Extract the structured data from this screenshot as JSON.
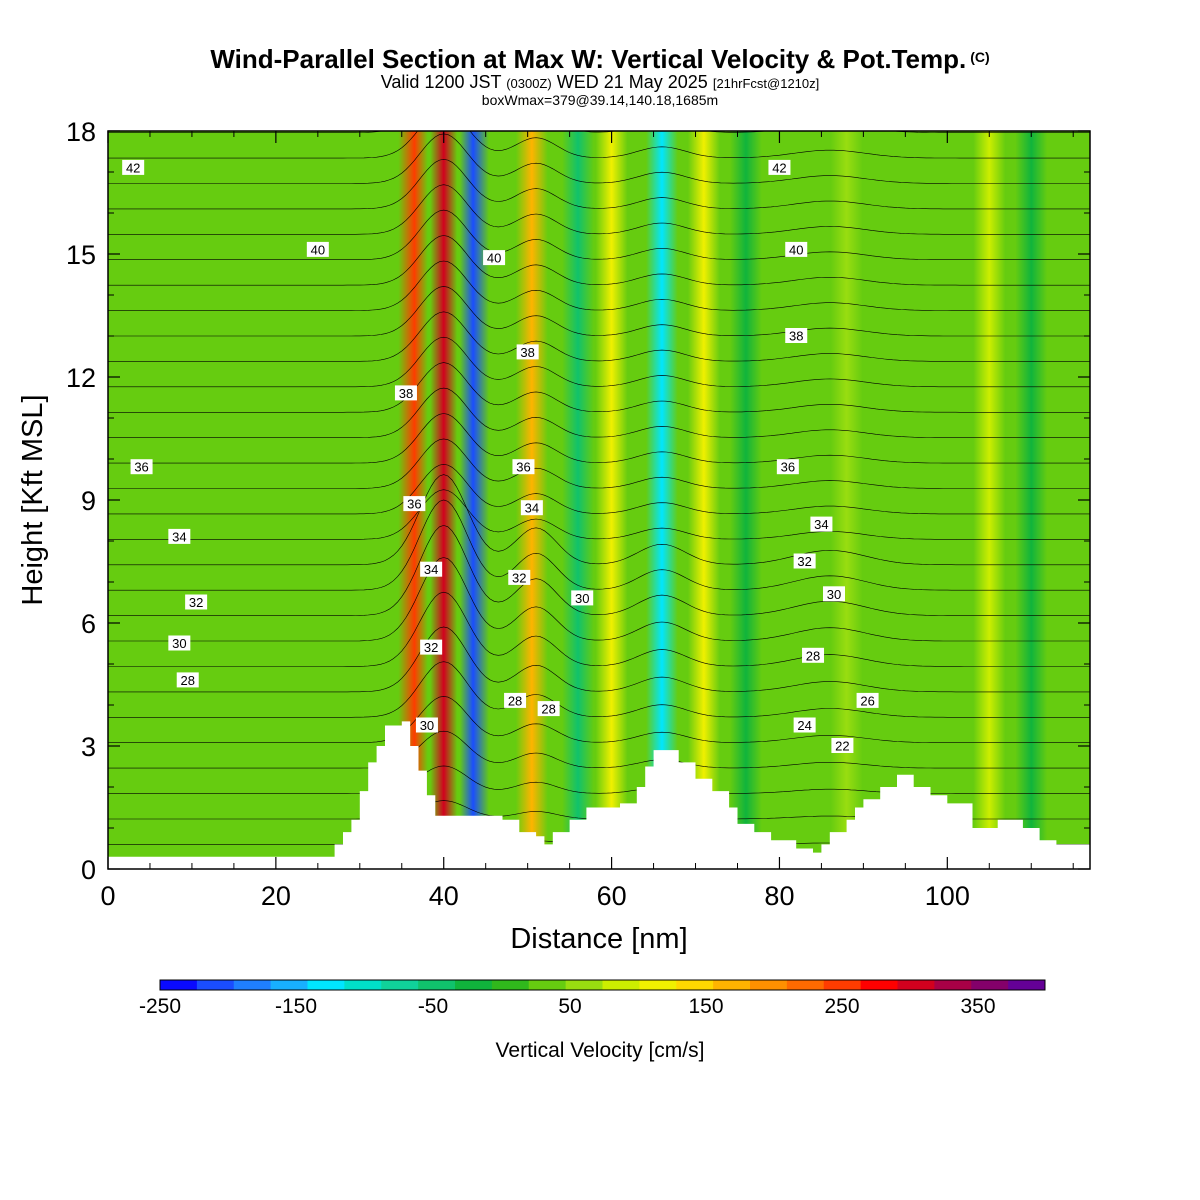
{
  "header": {
    "title": "Wind-Parallel Section at Max W: Vertical Velocity & Pot.Temp.",
    "copyright": "(C)",
    "valid_prefix": "Valid 1200 JST",
    "valid_utc": "(0300Z)",
    "valid_date": "WED 21 May 2025",
    "forecast_info": "[21hrFcst@1210z]",
    "box_info": "boxWmax=379@39.14,140.18,1685m"
  },
  "colorbar": {
    "label": "Vertical Velocity [cm/s]",
    "ticks": [
      "-250",
      "-150",
      "-50",
      "50",
      "150",
      "250",
      "350"
    ],
    "colors": [
      "#0a0aff",
      "#1a4dff",
      "#1f7fff",
      "#18b0ff",
      "#00e6ff",
      "#00e0c8",
      "#10d29a",
      "#10c26c",
      "#10b43c",
      "#30b81c",
      "#66cc10",
      "#99dd10",
      "#ccee00",
      "#f0f000",
      "#ffd800",
      "#ffb400",
      "#ff9000",
      "#ff6a00",
      "#ff3c00",
      "#ff0000",
      "#d2001e",
      "#a80046",
      "#84006a",
      "#640096"
    ]
  },
  "chart_data": {
    "type": "heatmap",
    "title": "Wind-Parallel Section at Max W: Vertical Velocity & Pot.Temp.",
    "xlabel": "Distance [nm]",
    "ylabel": "Height [Kft MSL]",
    "xlim": [
      0,
      117
    ],
    "ylim": [
      0,
      18
    ],
    "x_ticks": [
      "0",
      "20",
      "40",
      "60",
      "80",
      "100"
    ],
    "y_ticks": [
      "0",
      "3",
      "6",
      "9",
      "12",
      "15",
      "18"
    ],
    "colorbar_label": "Vertical Velocity [cm/s]",
    "colorbar_range": [
      -280,
      390
    ],
    "vertical_velocity_bands": [
      {
        "x": 36.5,
        "w": 240
      },
      {
        "x": 40.0,
        "w": 300
      },
      {
        "x": 43.5,
        "w": -240
      },
      {
        "x": 50.5,
        "w": 140
      },
      {
        "x": 56.0,
        "w": -60
      },
      {
        "x": 60.0,
        "w": 90
      },
      {
        "x": 66.0,
        "w": -150
      },
      {
        "x": 71.0,
        "w": 110
      },
      {
        "x": 76.0,
        "w": -30
      },
      {
        "x": 88.0,
        "w": 40
      },
      {
        "x": 105.0,
        "w": 70
      },
      {
        "x": 110.0,
        "w": -40
      }
    ],
    "contour_labels": [
      {
        "x": 3.0,
        "y": 17.1,
        "text": "42"
      },
      {
        "x": 25.0,
        "y": 15.1,
        "text": "40"
      },
      {
        "x": 46.0,
        "y": 14.9,
        "text": "40"
      },
      {
        "x": 50.0,
        "y": 12.6,
        "text": "38"
      },
      {
        "x": 35.5,
        "y": 11.6,
        "text": "38"
      },
      {
        "x": 4.0,
        "y": 9.8,
        "text": "36"
      },
      {
        "x": 36.5,
        "y": 8.9,
        "text": "36"
      },
      {
        "x": 49.5,
        "y": 9.8,
        "text": "36"
      },
      {
        "x": 50.5,
        "y": 8.8,
        "text": "34"
      },
      {
        "x": 8.5,
        "y": 8.1,
        "text": "34"
      },
      {
        "x": 38.5,
        "y": 7.3,
        "text": "34"
      },
      {
        "x": 49.0,
        "y": 7.1,
        "text": "32"
      },
      {
        "x": 10.5,
        "y": 6.5,
        "text": "32"
      },
      {
        "x": 38.5,
        "y": 5.4,
        "text": "32"
      },
      {
        "x": 56.5,
        "y": 6.6,
        "text": "30"
      },
      {
        "x": 8.5,
        "y": 5.5,
        "text": "30"
      },
      {
        "x": 38.0,
        "y": 3.5,
        "text": "30"
      },
      {
        "x": 9.5,
        "y": 4.6,
        "text": "28"
      },
      {
        "x": 48.5,
        "y": 4.1,
        "text": "28"
      },
      {
        "x": 52.5,
        "y": 3.9,
        "text": "28"
      },
      {
        "x": 80.0,
        "y": 17.1,
        "text": "42"
      },
      {
        "x": 82.0,
        "y": 15.1,
        "text": "40"
      },
      {
        "x": 82.0,
        "y": 13.0,
        "text": "38"
      },
      {
        "x": 81.0,
        "y": 9.8,
        "text": "36"
      },
      {
        "x": 85.0,
        "y": 8.4,
        "text": "34"
      },
      {
        "x": 83.0,
        "y": 7.5,
        "text": "32"
      },
      {
        "x": 86.5,
        "y": 6.7,
        "text": "30"
      },
      {
        "x": 84.0,
        "y": 5.2,
        "text": "28"
      },
      {
        "x": 90.5,
        "y": 4.1,
        "text": "26"
      },
      {
        "x": 83.0,
        "y": 3.5,
        "text": "24"
      },
      {
        "x": 87.5,
        "y": 3.0,
        "text": "22"
      }
    ],
    "terrain_kft": [
      [
        0,
        0.3
      ],
      [
        26,
        0.3
      ],
      [
        27,
        0.6
      ],
      [
        28,
        0.9
      ],
      [
        29,
        1.2
      ],
      [
        30,
        1.9
      ],
      [
        31,
        2.6
      ],
      [
        32,
        3.0
      ],
      [
        33,
        3.5
      ],
      [
        35,
        3.6
      ],
      [
        36,
        3.0
      ],
      [
        37,
        2.4
      ],
      [
        38,
        1.8
      ],
      [
        39,
        1.3
      ],
      [
        47,
        1.2
      ],
      [
        49,
        0.9
      ],
      [
        51,
        0.8
      ],
      [
        52,
        0.6
      ],
      [
        53,
        0.9
      ],
      [
        55,
        1.2
      ],
      [
        57,
        1.5
      ],
      [
        61,
        1.6
      ],
      [
        63,
        2.0
      ],
      [
        64,
        2.5
      ],
      [
        65,
        2.9
      ],
      [
        67,
        2.9
      ],
      [
        68,
        2.6
      ],
      [
        70,
        2.2
      ],
      [
        72,
        1.9
      ],
      [
        74,
        1.5
      ],
      [
        75,
        1.1
      ],
      [
        77,
        0.9
      ],
      [
        79,
        0.7
      ],
      [
        82,
        0.5
      ],
      [
        84,
        0.4
      ],
      [
        85,
        0.6
      ],
      [
        86,
        0.9
      ],
      [
        88,
        1.2
      ],
      [
        89,
        1.5
      ],
      [
        90,
        1.7
      ],
      [
        92,
        2.0
      ],
      [
        94,
        2.3
      ],
      [
        96,
        2.0
      ],
      [
        98,
        1.8
      ],
      [
        100,
        1.6
      ],
      [
        103,
        1.0
      ],
      [
        105,
        1.0
      ],
      [
        106,
        1.2
      ],
      [
        108,
        1.2
      ],
      [
        109,
        1.0
      ],
      [
        111,
        0.7
      ],
      [
        113,
        0.6
      ],
      [
        117,
        0.6
      ]
    ]
  }
}
